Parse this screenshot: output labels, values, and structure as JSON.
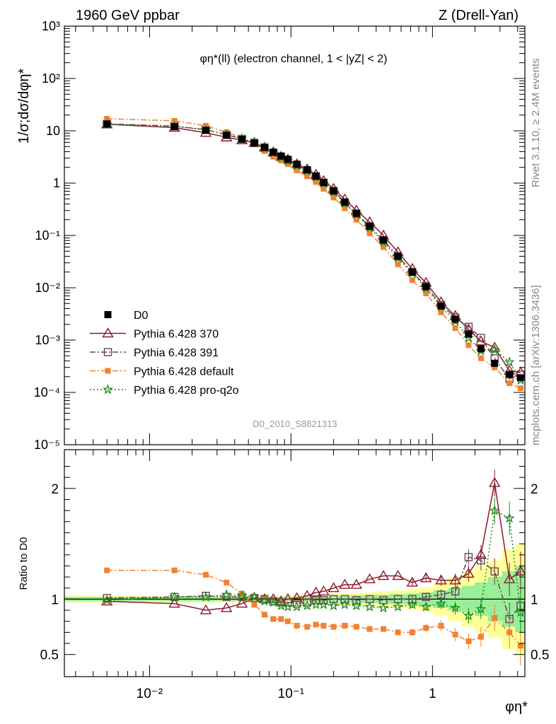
{
  "header": {
    "left_label": "1960 GeV ppbar",
    "right_label": "Z (Drell-Yan)"
  },
  "side_labels": {
    "rivet": "Rivet 3.1.10, ≥ 2.4M events",
    "mcplots": "mcplots.cern.ch [arXiv:1306.3436]"
  },
  "chart_data": [
    {
      "type": "line",
      "panel": "main",
      "title": "φη*(ll) (electron channel, 1 < |yZ| < 2)",
      "watermark": "D0_2010_S8821313",
      "xlabel": "φη*",
      "ylabel": "1/σ;dσ/dφη*",
      "xscale": "log",
      "yscale": "log",
      "xlim": [
        0.0025,
        4.5
      ],
      "ylim": [
        1e-05,
        1000
      ],
      "x_ticks": [
        "10⁻²",
        "10⁻¹",
        "1"
      ],
      "y_ticks": [
        "10⁻⁵",
        "10⁻⁴",
        "10⁻³",
        "10⁻²",
        "10⁻¹",
        "1",
        "10",
        "10²",
        "10³"
      ],
      "x": [
        0.005,
        0.015,
        0.025,
        0.035,
        0.045,
        0.055,
        0.065,
        0.075,
        0.085,
        0.095,
        0.11,
        0.13,
        0.15,
        0.17,
        0.2,
        0.24,
        0.29,
        0.36,
        0.45,
        0.57,
        0.72,
        0.9,
        1.15,
        1.45,
        1.8,
        2.2,
        2.75,
        3.5,
        4.2
      ],
      "series": [
        {
          "name": "D0",
          "style": "marker",
          "color": "#000000",
          "values": [
            13.5,
            12.0,
            10.2,
            8.2,
            6.9,
            5.8,
            4.8,
            3.9,
            3.3,
            2.85,
            2.3,
            1.8,
            1.36,
            1.03,
            0.71,
            0.43,
            0.265,
            0.15,
            0.082,
            0.04,
            0.02,
            0.0105,
            0.0045,
            0.0025,
            0.0013,
            0.00068,
            0.00036,
            0.00022,
            0.00019
          ]
        },
        {
          "name": "Pythia 6.428 370",
          "style": "line-triangle",
          "color": "#8b1a2b",
          "values": [
            13.3,
            11.5,
            9.2,
            7.5,
            6.6,
            5.9,
            4.8,
            3.9,
            3.2,
            2.85,
            2.3,
            1.85,
            1.45,
            1.1,
            0.78,
            0.49,
            0.3,
            0.18,
            0.1,
            0.048,
            0.023,
            0.0125,
            0.0053,
            0.0029,
            0.0016,
            0.00095,
            0.00072,
            0.00026,
            0.00024
          ]
        },
        {
          "name": "Pythia 6.428 391",
          "style": "dashdot-square",
          "color": "#6b4457",
          "values": [
            13.6,
            12.3,
            10.5,
            8.4,
            7.0,
            5.9,
            4.8,
            3.8,
            3.2,
            2.75,
            2.2,
            1.75,
            1.35,
            1.02,
            0.71,
            0.43,
            0.26,
            0.15,
            0.081,
            0.04,
            0.02,
            0.0108,
            0.0047,
            0.0027,
            0.0018,
            0.0011,
            0.00045,
            0.00018,
            0.00022
          ]
        },
        {
          "name": "Pythia 6.428 default",
          "style": "dashdot-filled-square",
          "color": "#f08232",
          "values": [
            17.0,
            15.5,
            12.5,
            9.4,
            7.3,
            5.5,
            4.1,
            3.2,
            2.7,
            2.3,
            1.75,
            1.35,
            1.05,
            0.78,
            0.53,
            0.33,
            0.2,
            0.11,
            0.06,
            0.028,
            0.014,
            0.0078,
            0.0034,
            0.0017,
            0.0008,
            0.00045,
            0.0003,
            0.00015,
            0.00012
          ]
        },
        {
          "name": "Pythia 6.428 pro-q2o",
          "style": "dotted-star",
          "color": "#1a8a1a",
          "values": [
            13.3,
            12.2,
            10.4,
            8.5,
            7.1,
            5.9,
            4.7,
            3.8,
            3.1,
            2.65,
            2.15,
            1.7,
            1.3,
            0.98,
            0.67,
            0.41,
            0.25,
            0.14,
            0.075,
            0.037,
            0.019,
            0.0098,
            0.0043,
            0.0023,
            0.0011,
            0.00062,
            0.00065,
            0.00038,
            0.00017
          ]
        }
      ],
      "legend_placement": "bottom-left"
    },
    {
      "type": "line",
      "panel": "ratio",
      "ylabel": "Ratio to D0",
      "xscale": "log",
      "xlim": [
        0.0025,
        4.5
      ],
      "ylim": [
        0.3,
        2.35
      ],
      "y_ticks": [
        "0.5",
        "1",
        "2"
      ],
      "x": [
        0.005,
        0.015,
        0.025,
        0.035,
        0.045,
        0.055,
        0.065,
        0.075,
        0.085,
        0.095,
        0.11,
        0.13,
        0.15,
        0.17,
        0.2,
        0.24,
        0.29,
        0.36,
        0.45,
        0.57,
        0.72,
        0.9,
        1.15,
        1.45,
        1.8,
        2.2,
        2.75,
        3.5,
        4.2
      ],
      "band_relative_error": [
        0.02,
        0.02,
        0.02,
        0.02,
        0.02,
        0.02,
        0.02,
        0.02,
        0.02,
        0.02,
        0.025,
        0.025,
        0.025,
        0.03,
        0.03,
        0.03,
        0.035,
        0.035,
        0.04,
        0.045,
        0.05,
        0.06,
        0.08,
        0.1,
        0.12,
        0.15,
        0.2,
        0.25,
        0.3
      ],
      "band_total_error": [
        0.03,
        0.03,
        0.03,
        0.03,
        0.03,
        0.03,
        0.03,
        0.03,
        0.035,
        0.035,
        0.04,
        0.04,
        0.04,
        0.045,
        0.05,
        0.05,
        0.055,
        0.06,
        0.07,
        0.08,
        0.09,
        0.11,
        0.15,
        0.2,
        0.25,
        0.3,
        0.35,
        0.45,
        0.5
      ],
      "series": [
        {
          "name": "Pythia 6.428 370",
          "color": "#8b1a2b",
          "values": [
            0.98,
            0.96,
            0.9,
            0.92,
            0.96,
            1.01,
            1.0,
            1.0,
            0.98,
            1.0,
            1.01,
            1.03,
            1.06,
            1.07,
            1.1,
            1.13,
            1.13,
            1.18,
            1.21,
            1.21,
            1.15,
            1.19,
            1.17,
            1.17,
            1.23,
            1.4,
            2.05,
            1.18,
            1.25
          ]
        },
        {
          "name": "Pythia 6.428 391",
          "color": "#6b4457",
          "values": [
            1.01,
            1.02,
            1.03,
            1.02,
            1.02,
            1.01,
            1.0,
            0.98,
            0.97,
            0.97,
            0.96,
            0.97,
            0.99,
            0.99,
            1.0,
            1.0,
            0.99,
            1.0,
            0.99,
            1.0,
            1.0,
            1.02,
            1.04,
            1.07,
            1.38,
            1.35,
            1.25,
            0.82,
            0.94
          ]
        },
        {
          "name": "Pythia 6.428 default",
          "color": "#f08232",
          "values": [
            1.26,
            1.26,
            1.22,
            1.15,
            1.05,
            0.95,
            0.86,
            0.82,
            0.82,
            0.8,
            0.76,
            0.75,
            0.77,
            0.76,
            0.75,
            0.76,
            0.75,
            0.73,
            0.73,
            0.7,
            0.7,
            0.74,
            0.76,
            0.68,
            0.62,
            0.66,
            0.83,
            0.7,
            0.58
          ]
        },
        {
          "name": "Pythia 6.428 pro-q2o",
          "color": "#1a8a1a",
          "values": [
            0.99,
            1.02,
            1.02,
            1.04,
            1.03,
            1.02,
            0.98,
            0.97,
            0.94,
            0.93,
            0.93,
            0.94,
            0.95,
            0.95,
            0.94,
            0.95,
            0.94,
            0.93,
            0.92,
            0.93,
            0.95,
            0.93,
            0.96,
            0.92,
            0.85,
            0.91,
            1.8,
            1.73,
            0.88
          ]
        }
      ]
    }
  ]
}
